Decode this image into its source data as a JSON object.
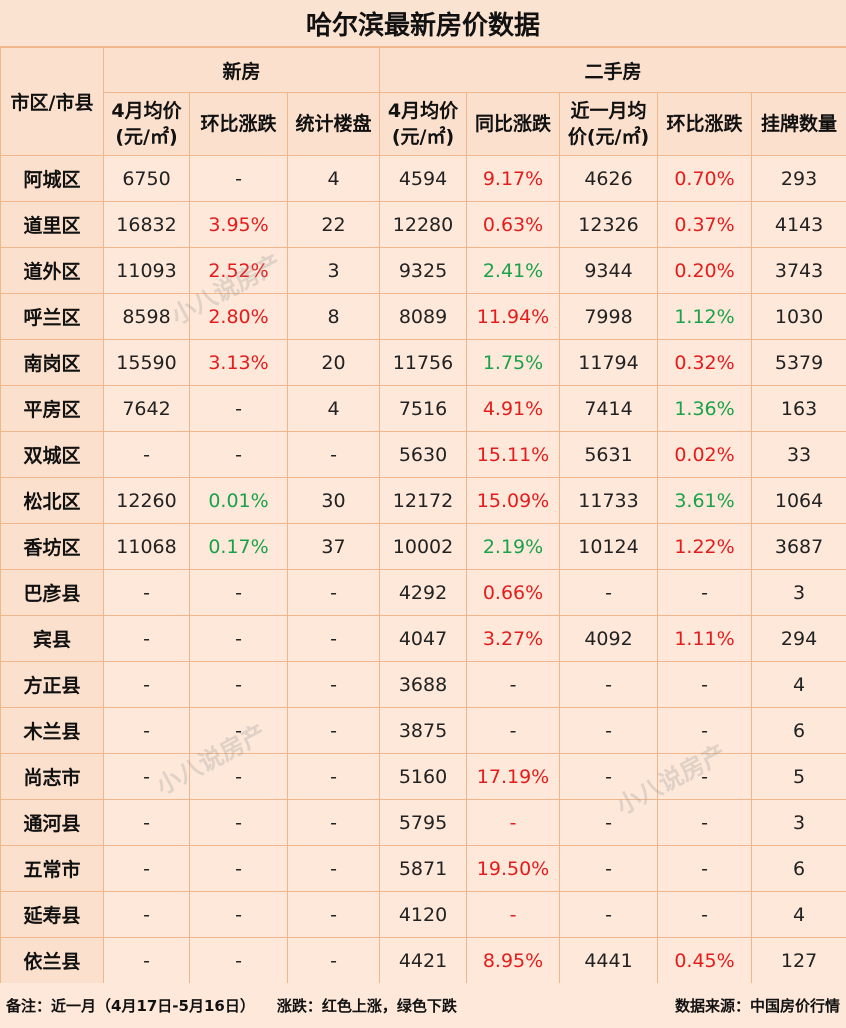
{
  "title": "哈尔滨最新房价数据",
  "header": {
    "district": "市区/市县",
    "new_house": "新房",
    "second_hand": "二手房",
    "new_avg_1": "4月均价",
    "new_avg_2": "(元/㎡)",
    "new_mom": "环比涨跌",
    "new_projects": "统计楼盘",
    "sh_avg_1": "4月均价",
    "sh_avg_2": "(元/㎡)",
    "sh_yoy": "同比涨跌",
    "sh_recent_1": "近一月均",
    "sh_recent_2": "价(元/㎡)",
    "sh_mom": "环比涨跌",
    "sh_listings": "挂牌数量"
  },
  "rows": [
    {
      "district": "阿城区",
      "new_avg": "6750",
      "new_mom": "-",
      "new_mom_dir": "",
      "projects": "4",
      "sh_avg": "4594",
      "sh_yoy": "9.17%",
      "sh_yoy_dir": "up",
      "sh_recent": "4626",
      "sh_mom": "0.70%",
      "sh_mom_dir": "up",
      "listings": "293"
    },
    {
      "district": "道里区",
      "new_avg": "16832",
      "new_mom": "3.95%",
      "new_mom_dir": "up",
      "projects": "22",
      "sh_avg": "12280",
      "sh_yoy": "0.63%",
      "sh_yoy_dir": "up",
      "sh_recent": "12326",
      "sh_mom": "0.37%",
      "sh_mom_dir": "up",
      "listings": "4143"
    },
    {
      "district": "道外区",
      "new_avg": "11093",
      "new_mom": "2.52%",
      "new_mom_dir": "up",
      "projects": "3",
      "sh_avg": "9325",
      "sh_yoy": "2.41%",
      "sh_yoy_dir": "down",
      "sh_recent": "9344",
      "sh_mom": "0.20%",
      "sh_mom_dir": "up",
      "listings": "3743"
    },
    {
      "district": "呼兰区",
      "new_avg": "8598",
      "new_mom": "2.80%",
      "new_mom_dir": "up",
      "projects": "8",
      "sh_avg": "8089",
      "sh_yoy": "11.94%",
      "sh_yoy_dir": "up",
      "sh_recent": "7998",
      "sh_mom": "1.12%",
      "sh_mom_dir": "down",
      "listings": "1030"
    },
    {
      "district": "南岗区",
      "new_avg": "15590",
      "new_mom": "3.13%",
      "new_mom_dir": "up",
      "projects": "20",
      "sh_avg": "11756",
      "sh_yoy": "1.75%",
      "sh_yoy_dir": "down",
      "sh_recent": "11794",
      "sh_mom": "0.32%",
      "sh_mom_dir": "up",
      "listings": "5379"
    },
    {
      "district": "平房区",
      "new_avg": "7642",
      "new_mom": "-",
      "new_mom_dir": "",
      "projects": "4",
      "sh_avg": "7516",
      "sh_yoy": "4.91%",
      "sh_yoy_dir": "up",
      "sh_recent": "7414",
      "sh_mom": "1.36%",
      "sh_mom_dir": "down",
      "listings": "163"
    },
    {
      "district": "双城区",
      "new_avg": "-",
      "new_mom": "-",
      "new_mom_dir": "",
      "projects": "-",
      "sh_avg": "5630",
      "sh_yoy": "15.11%",
      "sh_yoy_dir": "up",
      "sh_recent": "5631",
      "sh_mom": "0.02%",
      "sh_mom_dir": "up",
      "listings": "33"
    },
    {
      "district": "松北区",
      "new_avg": "12260",
      "new_mom": "0.01%",
      "new_mom_dir": "down",
      "projects": "30",
      "sh_avg": "12172",
      "sh_yoy": "15.09%",
      "sh_yoy_dir": "up",
      "sh_recent": "11733",
      "sh_mom": "3.61%",
      "sh_mom_dir": "down",
      "listings": "1064"
    },
    {
      "district": "香坊区",
      "new_avg": "11068",
      "new_mom": "0.17%",
      "new_mom_dir": "down",
      "projects": "37",
      "sh_avg": "10002",
      "sh_yoy": "2.19%",
      "sh_yoy_dir": "down",
      "sh_recent": "10124",
      "sh_mom": "1.22%",
      "sh_mom_dir": "up",
      "listings": "3687"
    },
    {
      "district": "巴彦县",
      "new_avg": "-",
      "new_mom": "-",
      "new_mom_dir": "",
      "projects": "-",
      "sh_avg": "4292",
      "sh_yoy": "0.66%",
      "sh_yoy_dir": "up",
      "sh_recent": "-",
      "sh_mom": "-",
      "sh_mom_dir": "",
      "listings": "3"
    },
    {
      "district": "宾县",
      "new_avg": "-",
      "new_mom": "-",
      "new_mom_dir": "",
      "projects": "-",
      "sh_avg": "4047",
      "sh_yoy": "3.27%",
      "sh_yoy_dir": "up",
      "sh_recent": "4092",
      "sh_mom": "1.11%",
      "sh_mom_dir": "up",
      "listings": "294"
    },
    {
      "district": "方正县",
      "new_avg": "-",
      "new_mom": "-",
      "new_mom_dir": "",
      "projects": "-",
      "sh_avg": "3688",
      "sh_yoy": "-",
      "sh_yoy_dir": "",
      "sh_recent": "-",
      "sh_mom": "-",
      "sh_mom_dir": "",
      "listings": "4"
    },
    {
      "district": "木兰县",
      "new_avg": "-",
      "new_mom": "-",
      "new_mom_dir": "",
      "projects": "-",
      "sh_avg": "3875",
      "sh_yoy": "-",
      "sh_yoy_dir": "",
      "sh_recent": "-",
      "sh_mom": "-",
      "sh_mom_dir": "",
      "listings": "6"
    },
    {
      "district": "尚志市",
      "new_avg": "-",
      "new_mom": "-",
      "new_mom_dir": "",
      "projects": "-",
      "sh_avg": "5160",
      "sh_yoy": "17.19%",
      "sh_yoy_dir": "up",
      "sh_recent": "-",
      "sh_mom": "-",
      "sh_mom_dir": "",
      "listings": "5"
    },
    {
      "district": "通河县",
      "new_avg": "-",
      "new_mom": "-",
      "new_mom_dir": "",
      "projects": "-",
      "sh_avg": "5795",
      "sh_yoy": "-",
      "sh_yoy_dir": "up",
      "sh_recent": "-",
      "sh_mom": "-",
      "sh_mom_dir": "",
      "listings": "3"
    },
    {
      "district": "五常市",
      "new_avg": "-",
      "new_mom": "-",
      "new_mom_dir": "",
      "projects": "-",
      "sh_avg": "5871",
      "sh_yoy": "19.50%",
      "sh_yoy_dir": "up",
      "sh_recent": "-",
      "sh_mom": "-",
      "sh_mom_dir": "",
      "listings": "6"
    },
    {
      "district": "延寿县",
      "new_avg": "-",
      "new_mom": "-",
      "new_mom_dir": "",
      "projects": "-",
      "sh_avg": "4120",
      "sh_yoy": "-",
      "sh_yoy_dir": "up",
      "sh_recent": "-",
      "sh_mom": "-",
      "sh_mom_dir": "",
      "listings": "4"
    },
    {
      "district": "依兰县",
      "new_avg": "-",
      "new_mom": "-",
      "new_mom_dir": "",
      "projects": "-",
      "sh_avg": "4421",
      "sh_yoy": "8.95%",
      "sh_yoy_dir": "up",
      "sh_recent": "4441",
      "sh_mom": "0.45%",
      "sh_mom_dir": "up",
      "listings": "127"
    }
  ],
  "footer": {
    "note": "备注：近一月（4月17日-5月16日）",
    "legend": "涨跌：红色上涨，绿色下跌",
    "source": "数据来源：中国房价行情"
  },
  "watermark": "小八说房产",
  "colors": {
    "up": "#e51c1c",
    "down": "#1aa24a"
  }
}
